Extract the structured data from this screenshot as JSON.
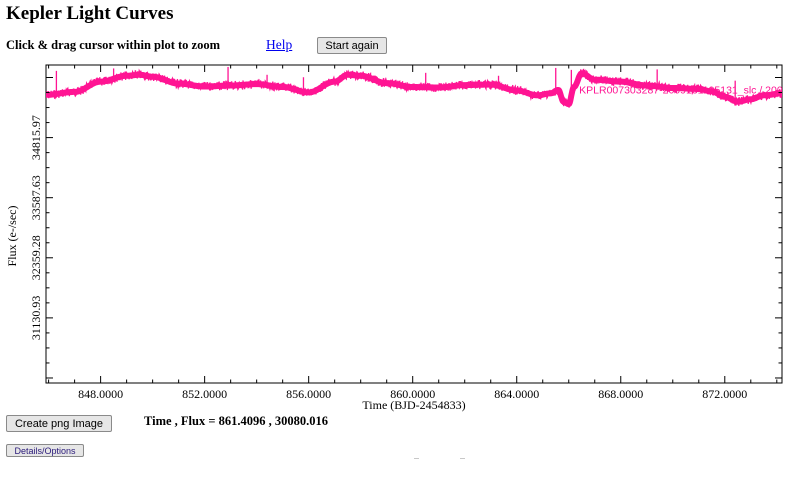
{
  "page": {
    "title": "Kepler Light Curves",
    "instructions": "Click & drag cursor within plot to zoom",
    "help_label": "Help",
    "start_again_label": "Start again",
    "create_png_label": "Create png Image",
    "details_label": "Details/Options",
    "readout": "Time , Flux = 861.4096 , 30080.016"
  },
  "colors": {
    "series": "#ff1493",
    "background": "#ffffff",
    "axis": "#000000"
  },
  "chart_data": {
    "type": "line",
    "title": "",
    "xlabel": "Time (BJD-2454833)",
    "ylabel": "Flux (e-/sec)",
    "xlim": [
      845.9,
      874.2
    ],
    "ylim": [
      29800,
      36300
    ],
    "x_ticks": [
      848,
      852,
      856,
      860,
      864,
      868,
      872
    ],
    "x_tick_labels": [
      "848.0000",
      "852.0000",
      "856.0000",
      "860.0000",
      "864.0000",
      "868.0000",
      "872.0000"
    ],
    "y_ticks": [
      31130.93,
      32359.28,
      33587.63,
      34815.97
    ],
    "y_tick_labels": [
      "31130.93",
      "32359.28",
      "33587.63",
      "34815.97"
    ],
    "grid": false,
    "series": [
      {
        "name": "KPLR007303287-2009131105131_slc / 2009175126:SC",
        "color": "#ff1493",
        "x": [
          845.9,
          847.0,
          848.0,
          849.0,
          849.5,
          850.0,
          851.0,
          852.0,
          853.0,
          854.0,
          855.0,
          856.0,
          857.0,
          857.5,
          858.0,
          859.0,
          860.0,
          861.0,
          862.0,
          863.0,
          864.0,
          864.8,
          865.3,
          865.6,
          865.8,
          866.0,
          866.2,
          866.5,
          867.0,
          868.0,
          869.0,
          870.0,
          871.0,
          871.5,
          872.0,
          872.5,
          873.0,
          873.5,
          874.2
        ],
        "y": [
          35690,
          35750,
          35960,
          36080,
          36100,
          36060,
          35920,
          35860,
          35880,
          35910,
          35850,
          35740,
          35960,
          36100,
          36080,
          35930,
          35850,
          35840,
          35890,
          35900,
          35780,
          35680,
          35720,
          35790,
          35550,
          35500,
          35850,
          36130,
          36000,
          35960,
          35880,
          35830,
          35810,
          35760,
          35650,
          35550,
          35600,
          35680,
          35720
        ]
      }
    ],
    "spikes": [
      {
        "x": 846.3,
        "y": 36180
      },
      {
        "x": 848.5,
        "y": 36230
      },
      {
        "x": 852.9,
        "y": 36260
      },
      {
        "x": 854.4,
        "y": 36100
      },
      {
        "x": 855.8,
        "y": 36050
      },
      {
        "x": 858.0,
        "y": 36150
      },
      {
        "x": 860.5,
        "y": 36140
      },
      {
        "x": 863.3,
        "y": 36080
      },
      {
        "x": 865.5,
        "y": 36240
      },
      {
        "x": 866.1,
        "y": 36200
      },
      {
        "x": 869.4,
        "y": 36210
      },
      {
        "x": 872.4,
        "y": 35980
      }
    ]
  }
}
